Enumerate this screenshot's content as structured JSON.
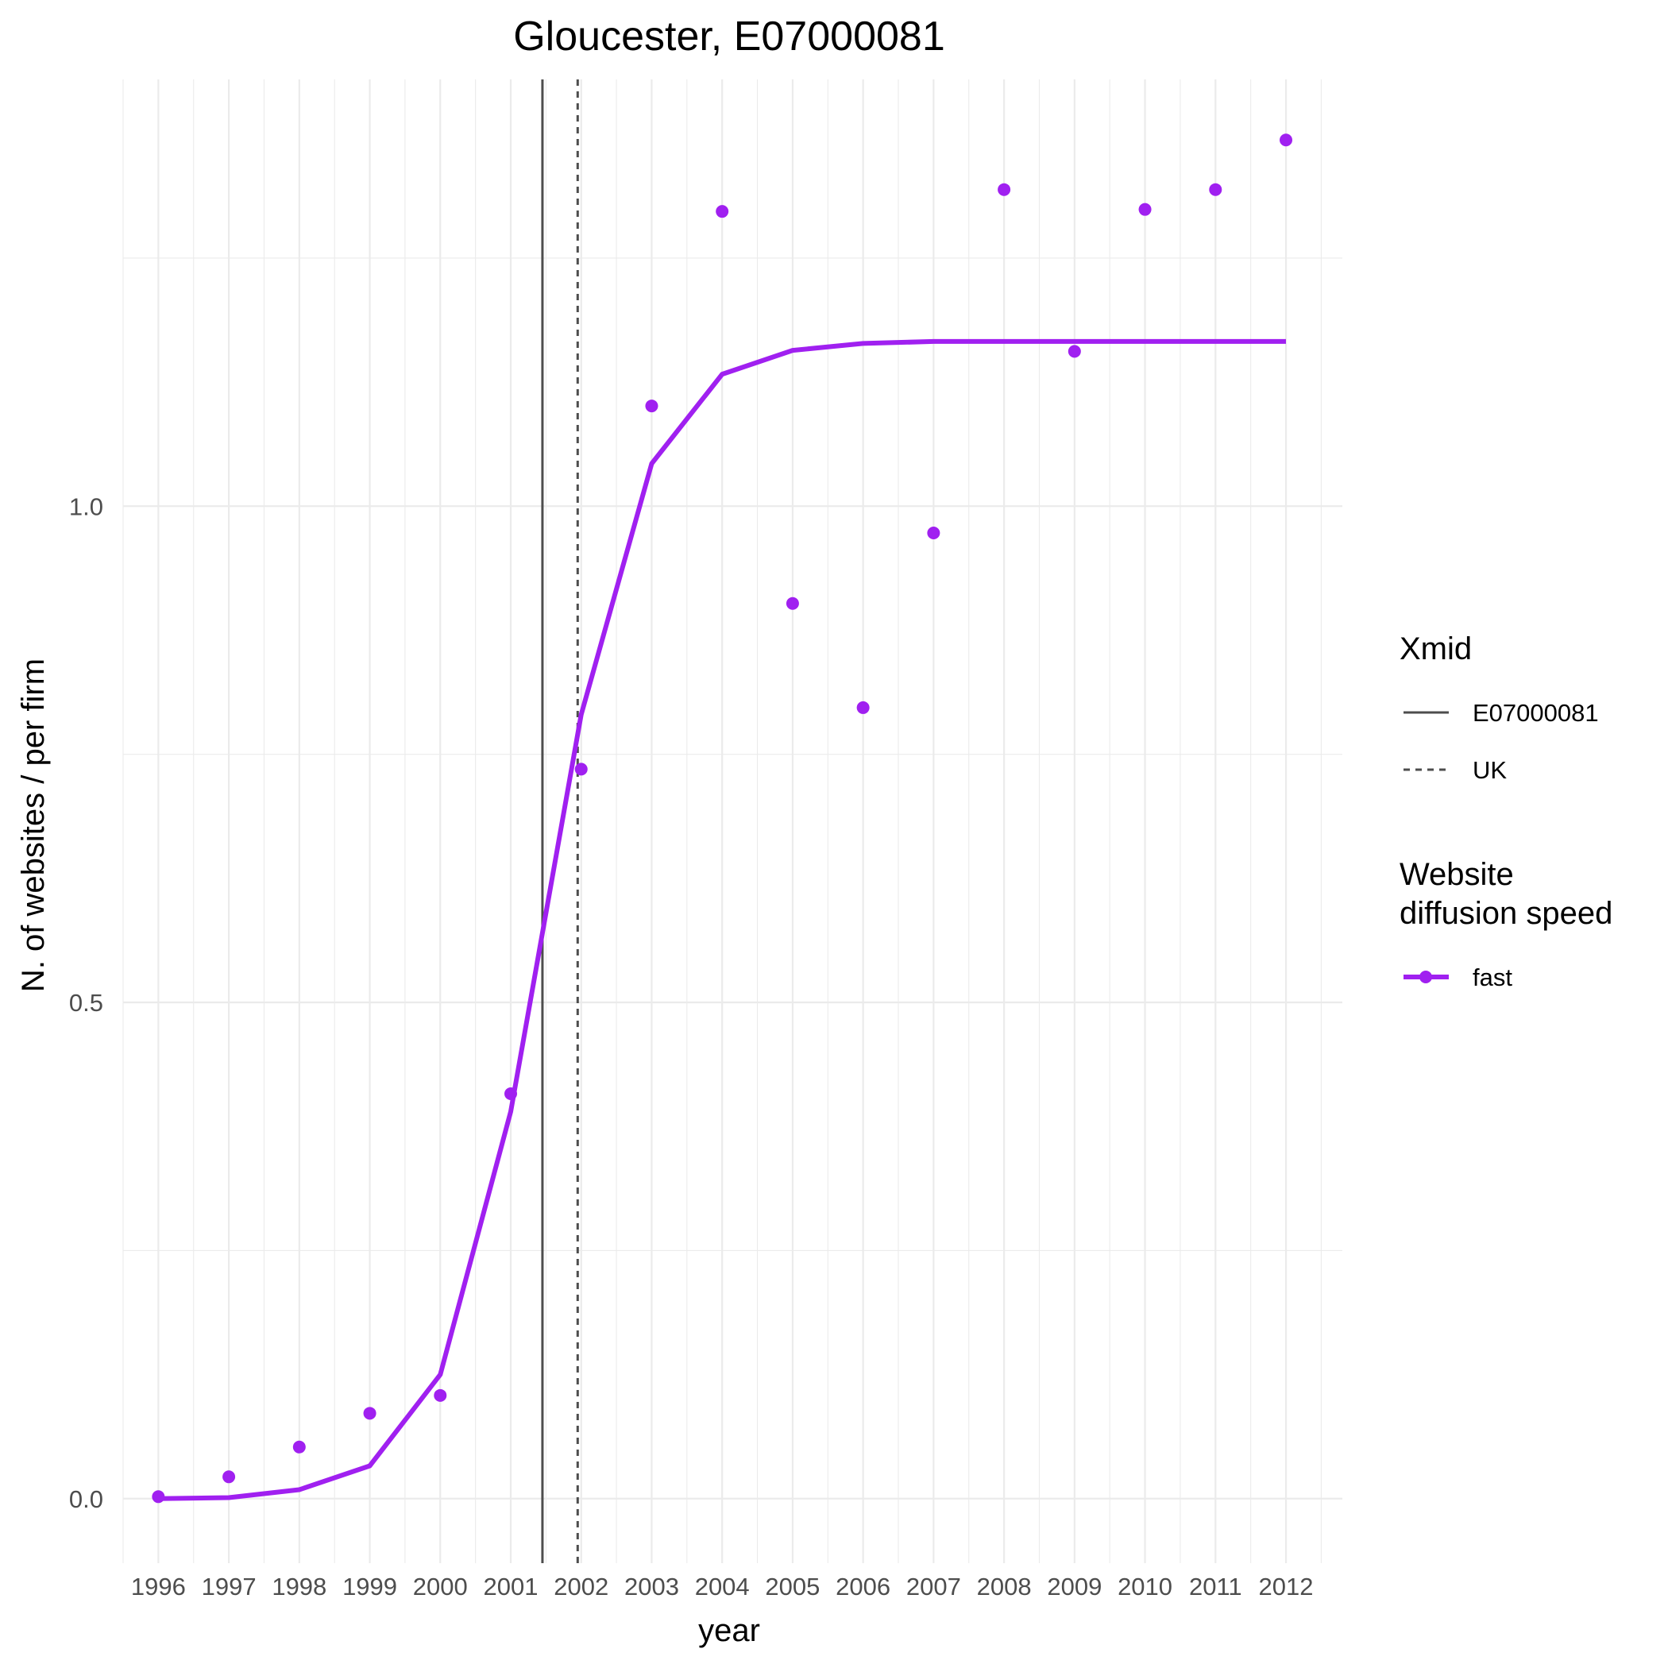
{
  "chart_data": {
    "type": "line",
    "title": "Gloucester, E07000081",
    "xlabel": "year",
    "ylabel": "N. of websites / per firm",
    "x": [
      1996,
      1997,
      1998,
      1999,
      2000,
      2001,
      2002,
      2003,
      2004,
      2005,
      2006,
      2007,
      2008,
      2009,
      2010,
      2011,
      2012
    ],
    "x_tick_labels": [
      "1996",
      "1997",
      "1998",
      "1999",
      "2000",
      "2001",
      "2002",
      "2003",
      "2004",
      "2005",
      "2006",
      "2007",
      "2008",
      "2009",
      "2010",
      "2011",
      "2012"
    ],
    "y_ticks": [
      0.0,
      0.5,
      1.0
    ],
    "y_tick_labels": [
      "0.0",
      "0.5",
      "1.0"
    ],
    "xlim": [
      1995.5,
      2012.8
    ],
    "ylim": [
      -0.065,
      1.43
    ],
    "grid": true,
    "series": [
      {
        "name": "fast",
        "color": "#a020f0",
        "fitted": [
          0.0,
          0.001,
          0.009,
          0.033,
          0.125,
          0.39,
          0.79,
          1.043,
          1.133,
          1.157,
          1.164,
          1.166,
          1.166,
          1.166,
          1.166,
          1.166,
          1.166
        ],
        "observed": [
          0.002,
          0.022,
          0.052,
          0.086,
          0.104,
          0.408,
          0.735,
          1.101,
          1.297,
          0.902,
          0.797,
          0.973,
          1.319,
          1.156,
          1.299,
          1.319,
          1.369
        ]
      }
    ],
    "vlines": [
      {
        "name": "E07000081",
        "x": 2001.45,
        "style": "solid",
        "color": "#4d4d4d"
      },
      {
        "name": "UK",
        "x": 2001.95,
        "style": "dashed",
        "color": "#4d4d4d"
      }
    ],
    "legend": {
      "placement": "right",
      "groups": [
        {
          "title": [
            "Xmid"
          ],
          "entries": [
            {
              "label": "E07000081",
              "style": "solid"
            },
            {
              "label": "UK",
              "style": "dashed"
            }
          ]
        },
        {
          "title": [
            "Website",
            "diffusion speed"
          ],
          "entries": [
            {
              "label": "fast",
              "style": "line-point",
              "color": "#a020f0"
            }
          ]
        }
      ]
    }
  }
}
